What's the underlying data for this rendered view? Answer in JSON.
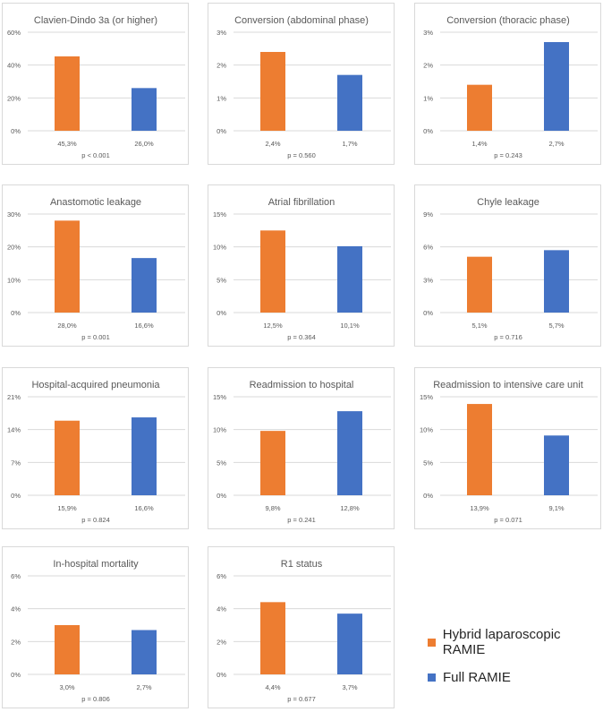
{
  "chart_data": [
    {
      "type": "bar",
      "title": "Clavien-Dindo 3a (or higher)",
      "ylim": [
        0,
        60
      ],
      "yticks": [
        "0%",
        "20%",
        "40%",
        "60%"
      ],
      "values": [
        45.3,
        26.0
      ],
      "labels": [
        "45,3%",
        "26,0%"
      ],
      "pvalue": "p < 0.001"
    },
    {
      "type": "bar",
      "title": "Conversion (abdominal phase)",
      "ylim": [
        0,
        3
      ],
      "yticks": [
        "0%",
        "1%",
        "2%",
        "3%"
      ],
      "values": [
        2.4,
        1.7
      ],
      "labels": [
        "2,4%",
        "1,7%"
      ],
      "pvalue": "p = 0.560"
    },
    {
      "type": "bar",
      "title": "Conversion (thoracic phase)",
      "ylim": [
        0,
        3
      ],
      "yticks": [
        "0%",
        "1%",
        "2%",
        "3%"
      ],
      "values": [
        1.4,
        2.7
      ],
      "labels": [
        "1,4%",
        "2,7%"
      ],
      "pvalue": "p = 0.243"
    },
    {
      "type": "bar",
      "title": "Anastomotic leakage",
      "ylim": [
        0,
        30
      ],
      "yticks": [
        "0%",
        "10%",
        "20%",
        "30%"
      ],
      "values": [
        28.0,
        16.6
      ],
      "labels": [
        "28,0%",
        "16,6%"
      ],
      "pvalue": "p = 0.001"
    },
    {
      "type": "bar",
      "title": "Atrial fibrillation",
      "ylim": [
        0,
        15
      ],
      "yticks": [
        "0%",
        "5%",
        "10%",
        "15%"
      ],
      "values": [
        12.5,
        10.1
      ],
      "labels": [
        "12,5%",
        "10,1%"
      ],
      "pvalue": "p = 0.364"
    },
    {
      "type": "bar",
      "title": "Chyle leakage",
      "ylim": [
        0,
        9
      ],
      "yticks": [
        "0%",
        "3%",
        "6%",
        "9%"
      ],
      "values": [
        5.1,
        5.7
      ],
      "labels": [
        "5,1%",
        "5,7%"
      ],
      "pvalue": "p = 0.716"
    },
    {
      "type": "bar",
      "title": "Hospital-acquired pneumonia",
      "ylim": [
        0,
        21
      ],
      "yticks": [
        "0%",
        "7%",
        "14%",
        "21%"
      ],
      "values": [
        15.9,
        16.6
      ],
      "labels": [
        "15,9%",
        "16,6%"
      ],
      "pvalue": "p = 0.824"
    },
    {
      "type": "bar",
      "title": "Readmission to hospital",
      "ylim": [
        0,
        15
      ],
      "yticks": [
        "0%",
        "5%",
        "10%",
        "15%"
      ],
      "values": [
        9.8,
        12.8
      ],
      "labels": [
        "9,8%",
        "12,8%"
      ],
      "pvalue": "p = 0.241"
    },
    {
      "type": "bar",
      "title": "Readmission to intensive care unit",
      "ylim": [
        0,
        15
      ],
      "yticks": [
        "0%",
        "5%",
        "10%",
        "15%"
      ],
      "values": [
        13.9,
        9.1
      ],
      "labels": [
        "13,9%",
        "9,1%"
      ],
      "pvalue": "p = 0.071"
    },
    {
      "type": "bar",
      "title": "In-hospital mortality",
      "ylim": [
        0,
        6
      ],
      "yticks": [
        "0%",
        "2%",
        "4%",
        "6%"
      ],
      "values": [
        3.0,
        2.7
      ],
      "labels": [
        "3,0%",
        "2,7%"
      ],
      "pvalue": "p = 0.806"
    },
    {
      "type": "bar",
      "title": "R1 status",
      "ylim": [
        0,
        6
      ],
      "yticks": [
        "0%",
        "2%",
        "4%",
        "6%"
      ],
      "values": [
        4.4,
        3.7
      ],
      "labels": [
        "4,4%",
        "3,7%"
      ],
      "pvalue": "p = 0.677"
    }
  ],
  "legend": [
    {
      "name": "Hybrid laparoscopic RAMIE",
      "color": "#ed7d31"
    },
    {
      "name": "Full RAMIE",
      "color": "#4472c4"
    }
  ]
}
